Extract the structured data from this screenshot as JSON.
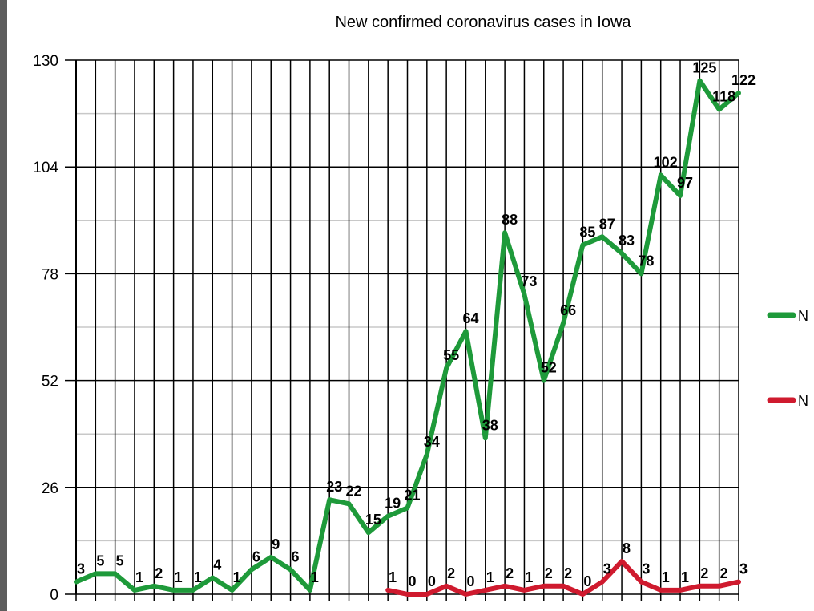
{
  "chart_data": {
    "type": "line",
    "title": "New confirmed coronavirus cases in Iowa",
    "xlabel": "",
    "ylabel": "",
    "ylim": [
      0,
      130
    ],
    "yticks": [
      0,
      26,
      52,
      78,
      104,
      130
    ],
    "grid": true,
    "legend_position": "right",
    "x": [
      1,
      2,
      3,
      4,
      5,
      6,
      7,
      8,
      9,
      10,
      11,
      12,
      13,
      14,
      15,
      16,
      17,
      18,
      19,
      20,
      21,
      22,
      23,
      24,
      25,
      26,
      27,
      28,
      29,
      30,
      31,
      32,
      33,
      34,
      35
    ],
    "series": [
      {
        "name": "N",
        "color": "#1e9a3a",
        "values": [
          3,
          5,
          5,
          1,
          2,
          1,
          1,
          4,
          1,
          6,
          9,
          6,
          1,
          23,
          22,
          15,
          19,
          21,
          34,
          55,
          64,
          38,
          88,
          73,
          52,
          66,
          85,
          87,
          83,
          78,
          102,
          97,
          125,
          118,
          122
        ]
      },
      {
        "name": "N",
        "color": "#cf1a2e",
        "values": [
          null,
          null,
          null,
          null,
          null,
          null,
          null,
          null,
          null,
          null,
          null,
          null,
          null,
          null,
          null,
          null,
          1,
          0,
          0,
          2,
          0,
          1,
          2,
          1,
          2,
          2,
          0,
          3,
          8,
          3,
          1,
          1,
          2,
          2,
          3
        ]
      }
    ]
  }
}
